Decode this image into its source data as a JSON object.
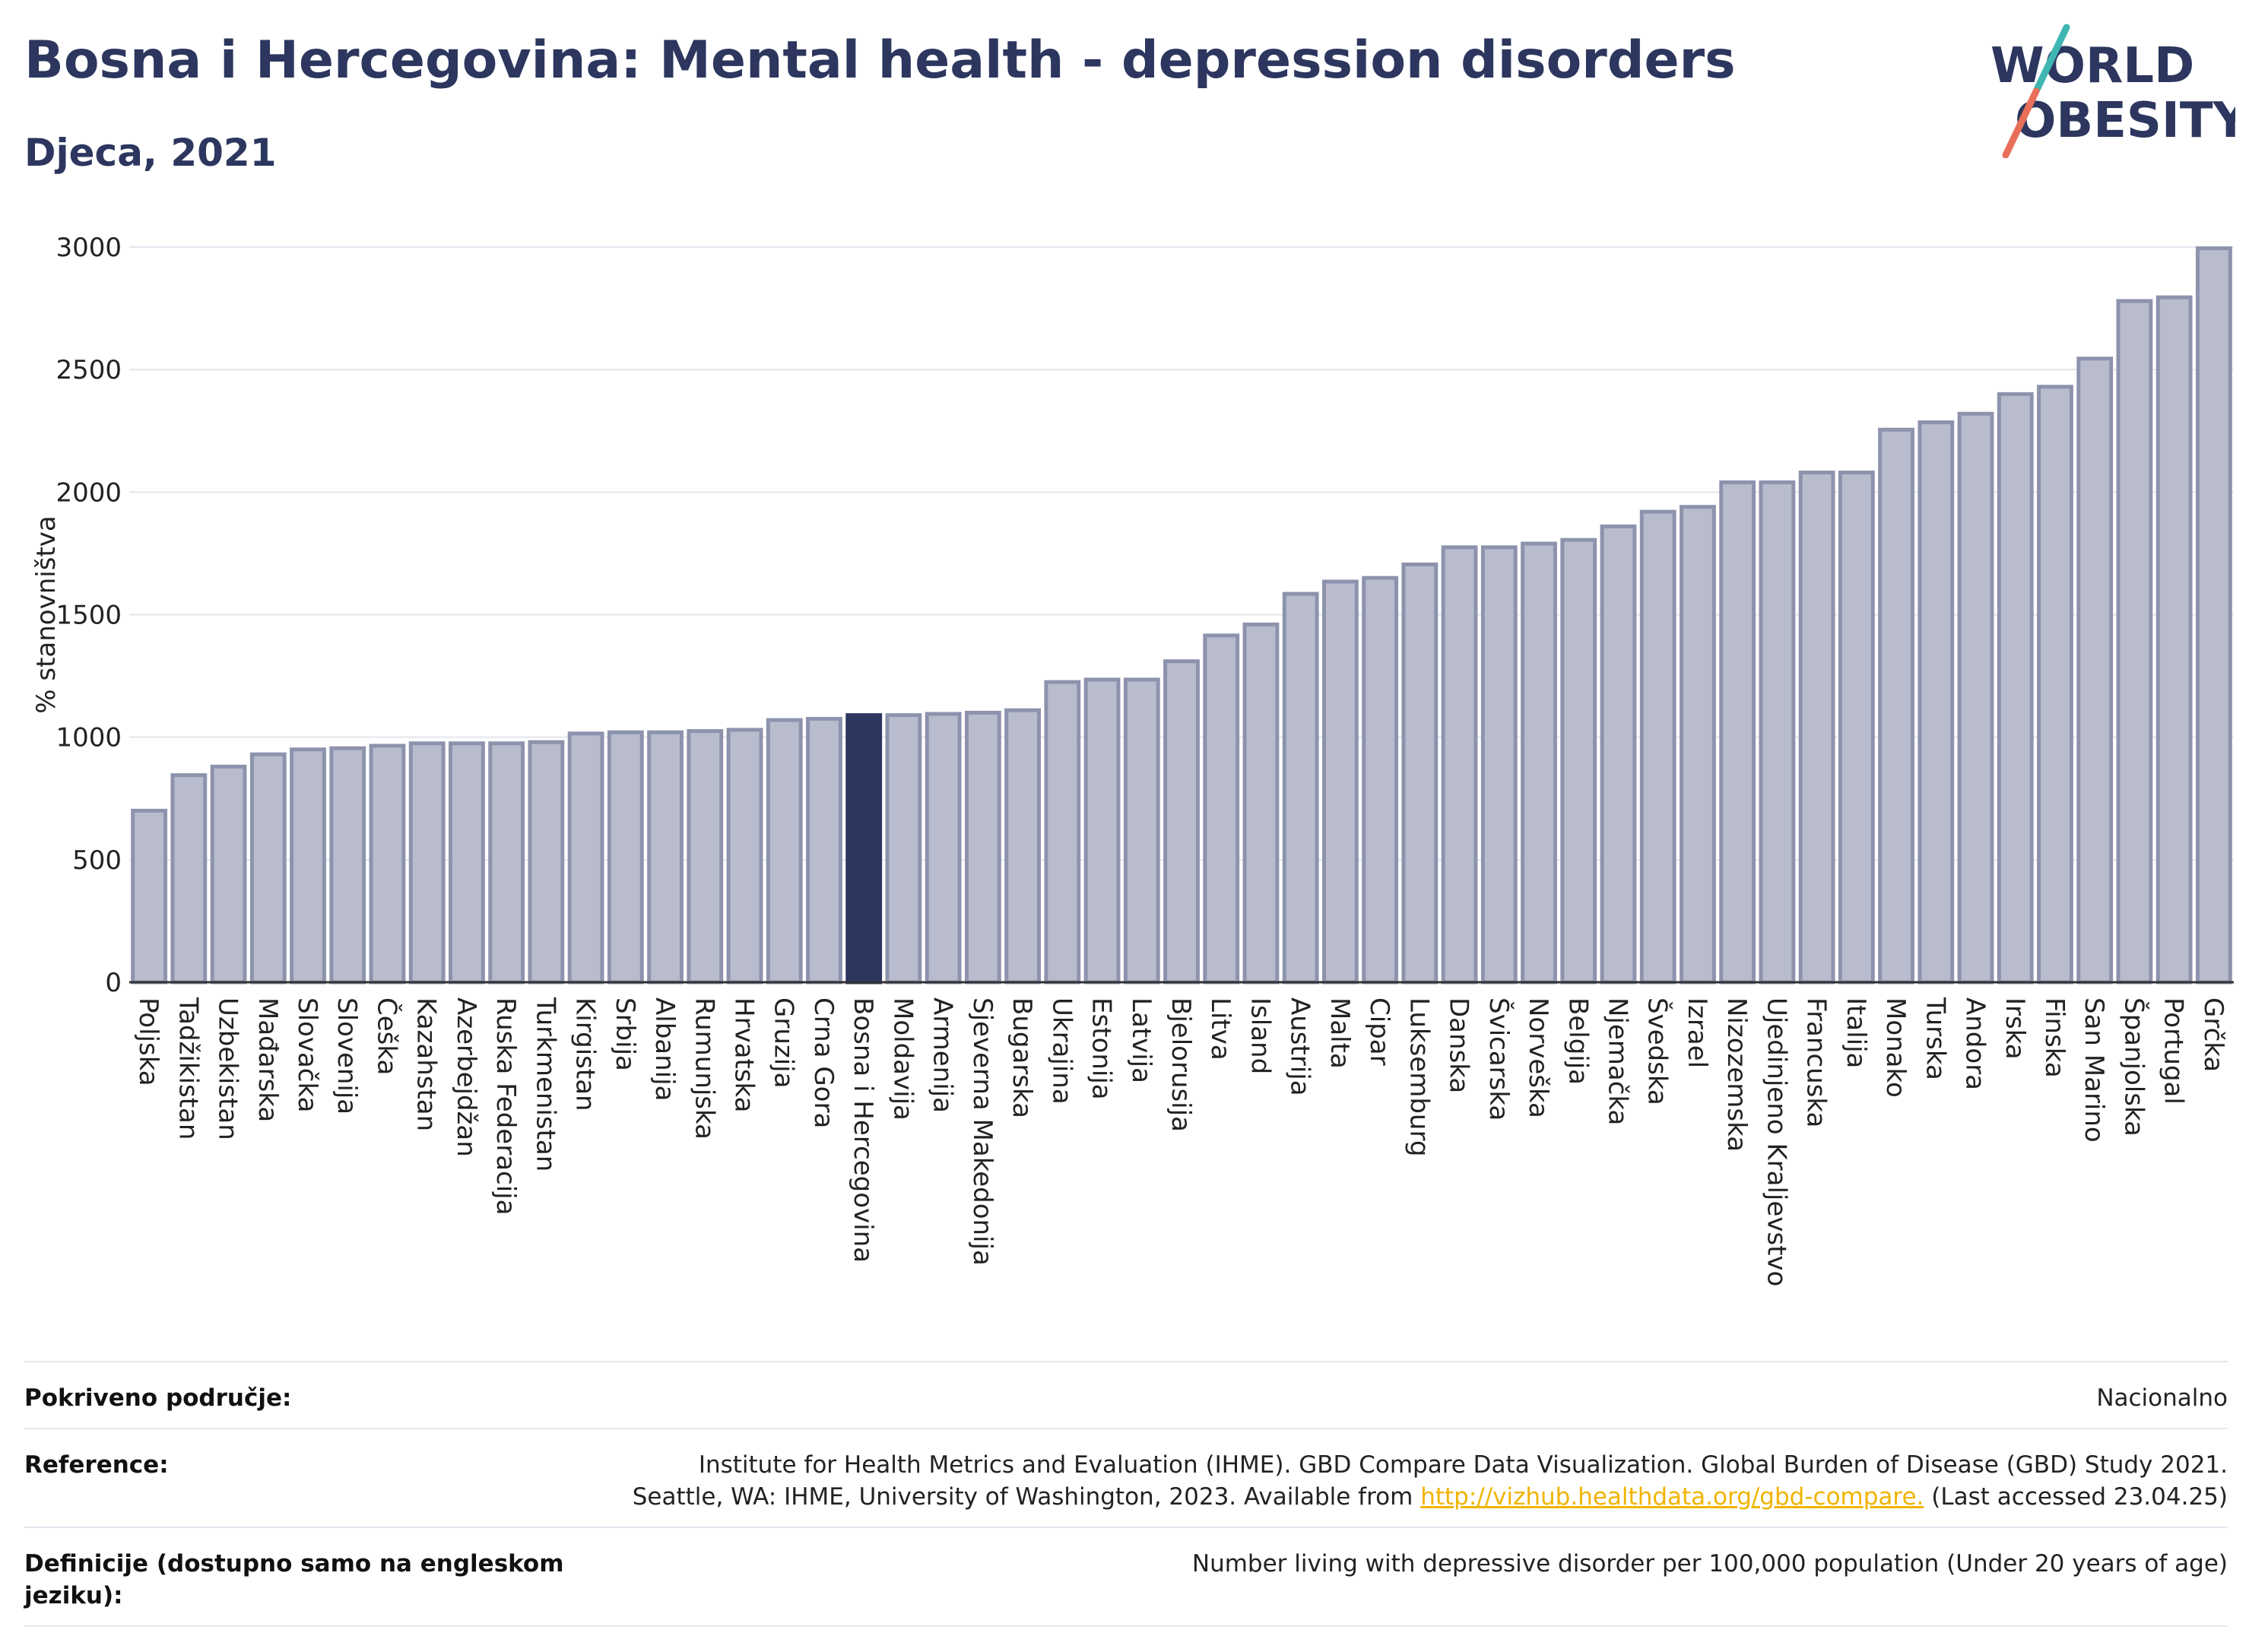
{
  "header": {
    "title": "Bosna i Hercegovina: Mental health - depression disorders",
    "subtitle": "Djeca, 2021"
  },
  "logo": {
    "line1": "WORLD",
    "line2": "OBESITY",
    "accent_teal": "#3fb6b2",
    "accent_coral": "#e8705a"
  },
  "colors": {
    "bar": "#b8bccd",
    "bar_stroke": "#8d93ad",
    "highlight": "#2c365e",
    "grid": "#e4e6ee",
    "text_dark": "#2c365e"
  },
  "chart_data": {
    "type": "bar",
    "ylabel": "% stanovništva",
    "ylim": [
      0,
      3000
    ],
    "yticks": [
      0,
      500,
      1000,
      1500,
      2000,
      2500,
      3000
    ],
    "grid": true,
    "highlight": "Bosna i Hercegovina",
    "categories": [
      "Poljska",
      "Tadžikistan",
      "Uzbekistan",
      "Mađarska",
      "Slovačka",
      "Slovenija",
      "Češka",
      "Kazahstan",
      "Azerbejdžan",
      "Ruska Federacija",
      "Turkmenistan",
      "Kirgistan",
      "Srbija",
      "Albanija",
      "Rumunjska",
      "Hrvatska",
      "Gruzija",
      "Crna Gora",
      "Bosna i Hercegovina",
      "Moldavija",
      "Armenija",
      "Sjeverna Makedonija",
      "Bugarska",
      "Ukrajina",
      "Estonija",
      "Latvija",
      "Bjelorusija",
      "Litva",
      "Island",
      "Austrija",
      "Malta",
      "Cipar",
      "Luksemburg",
      "Danska",
      "Švicarska",
      "Norveška",
      "Belgija",
      "Njemačka",
      "Švedska",
      "Izrael",
      "Nizozemska",
      "Ujedinjeno Kraljevstvo",
      "Francuska",
      "Italija",
      "Monako",
      "Turska",
      "Andora",
      "Irska",
      "Finska",
      "San Marino",
      "Španjolska",
      "Portugal",
      "Grčka"
    ],
    "values": [
      700,
      845,
      880,
      930,
      950,
      955,
      965,
      975,
      975,
      975,
      980,
      1015,
      1020,
      1020,
      1025,
      1030,
      1070,
      1075,
      1090,
      1090,
      1095,
      1100,
      1110,
      1225,
      1235,
      1235,
      1310,
      1415,
      1460,
      1585,
      1635,
      1650,
      1705,
      1775,
      1775,
      1790,
      1805,
      1860,
      1920,
      1940,
      2040,
      2040,
      2080,
      2080,
      2255,
      2285,
      2320,
      2400,
      2430,
      2545,
      2780,
      2795,
      2995
    ]
  },
  "info": {
    "coverage_label": "Pokriveno područje:",
    "coverage_value": "Nacionalno",
    "reference_label": "Reference:",
    "reference_line1": "Institute for Health Metrics and Evaluation (IHME). GBD Compare Data Visualization. Global Burden of Disease (GBD) Study 2021.",
    "reference_line2_pre": "Seattle, WA: IHME, University of Washington, 2023. Available from ",
    "reference_link": "http://vizhub.healthdata.org/gbd-compare.",
    "reference_line2_post": " (Last accessed 23.04.25)",
    "definition_label": "Definicije (dostupno samo na engleskom jeziku):",
    "definition_value": "Number living with depressive disorder per 100,000 population (Under 20 years of age)"
  }
}
